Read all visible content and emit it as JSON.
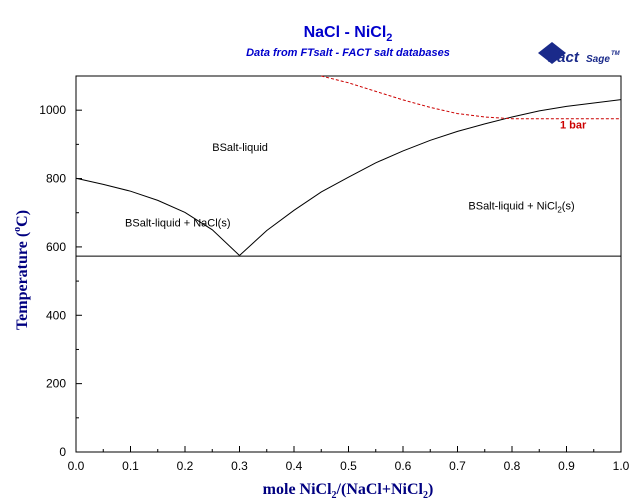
{
  "chart_data": {
    "type": "line",
    "title": "NaCl - NiCl",
    "title_sub": "2",
    "subtitle": "Data from FTsalt - FACT salt databases",
    "logo": "FactSage™",
    "xlabel_parts": {
      "a": "mole NiCl",
      "a_sub": "2",
      "b": "/(NaCl+NiCl",
      "b_sub": "2",
      "c": ")"
    },
    "ylabel_parts": {
      "a": "Temperature (",
      "deg": "o",
      "b": "C)"
    },
    "xlim": [
      0.0,
      1.0
    ],
    "ylim": [
      0,
      1100
    ],
    "x_ticks": [
      "0.0",
      "0.1",
      "0.2",
      "0.3",
      "0.4",
      "0.5",
      "0.6",
      "0.7",
      "0.8",
      "0.9",
      "1.0"
    ],
    "x_tick_values": [
      0,
      0.1,
      0.2,
      0.3,
      0.4,
      0.5,
      0.6,
      0.7,
      0.8,
      0.9,
      1.0
    ],
    "y_ticks": [
      "0",
      "200",
      "400",
      "600",
      "800",
      "1000"
    ],
    "y_tick_values": [
      0,
      200,
      400,
      600,
      800,
      1000
    ],
    "grid": false,
    "colors": {
      "title": "#0000cc",
      "axis_label": "#000080",
      "curve": "#000000",
      "pressure_line": "#cc0000"
    },
    "series": [
      {
        "key": "liquidus_nacl",
        "color": "#000000",
        "dashed": false,
        "x": [
          0.0,
          0.05,
          0.1,
          0.15,
          0.2,
          0.25,
          0.3
        ],
        "y": [
          801,
          783,
          763,
          736,
          701,
          650,
          575
        ]
      },
      {
        "key": "liquidus_nicl2",
        "color": "#000000",
        "dashed": false,
        "x": [
          0.3,
          0.35,
          0.4,
          0.45,
          0.5,
          0.55,
          0.6,
          0.65,
          0.7,
          0.75,
          0.8,
          0.85,
          0.9,
          0.95,
          1.0
        ],
        "y": [
          575,
          648,
          707,
          761,
          804,
          846,
          881,
          912,
          938,
          960,
          980,
          998,
          1011,
          1021,
          1031
        ]
      },
      {
        "key": "eutectic",
        "color": "#000000",
        "dashed": false,
        "x": [
          0.0,
          1.0
        ],
        "y": [
          573,
          573
        ]
      },
      {
        "key": "one_bar",
        "color": "#cc0000",
        "dashed": true,
        "x": [
          0.45,
          0.5,
          0.55,
          0.6,
          0.65,
          0.7,
          0.75,
          0.8,
          0.85,
          0.9,
          0.95,
          1.0
        ],
        "y": [
          1100,
          1080,
          1055,
          1030,
          1008,
          990,
          980,
          975,
          975,
          975,
          975,
          975
        ]
      }
    ],
    "regions": [
      {
        "key": "liquid",
        "text": "BSalt-liquid",
        "x": 0.25,
        "y": 880
      },
      {
        "key": "liquid_nacl",
        "text": "BSalt-liquid + NaCl(s)",
        "x": 0.09,
        "y": 660
      },
      {
        "key": "liquid_nicl2",
        "parts": {
          "a": "BSalt-liquid + NiCl",
          "sub": "2",
          "b": "(s)"
        },
        "x": 0.72,
        "y": 710
      }
    ],
    "annotations": [
      {
        "key": "one_bar_label",
        "text": "1 bar",
        "x": 0.888,
        "y": 946,
        "color": "#cc0000"
      }
    ]
  }
}
